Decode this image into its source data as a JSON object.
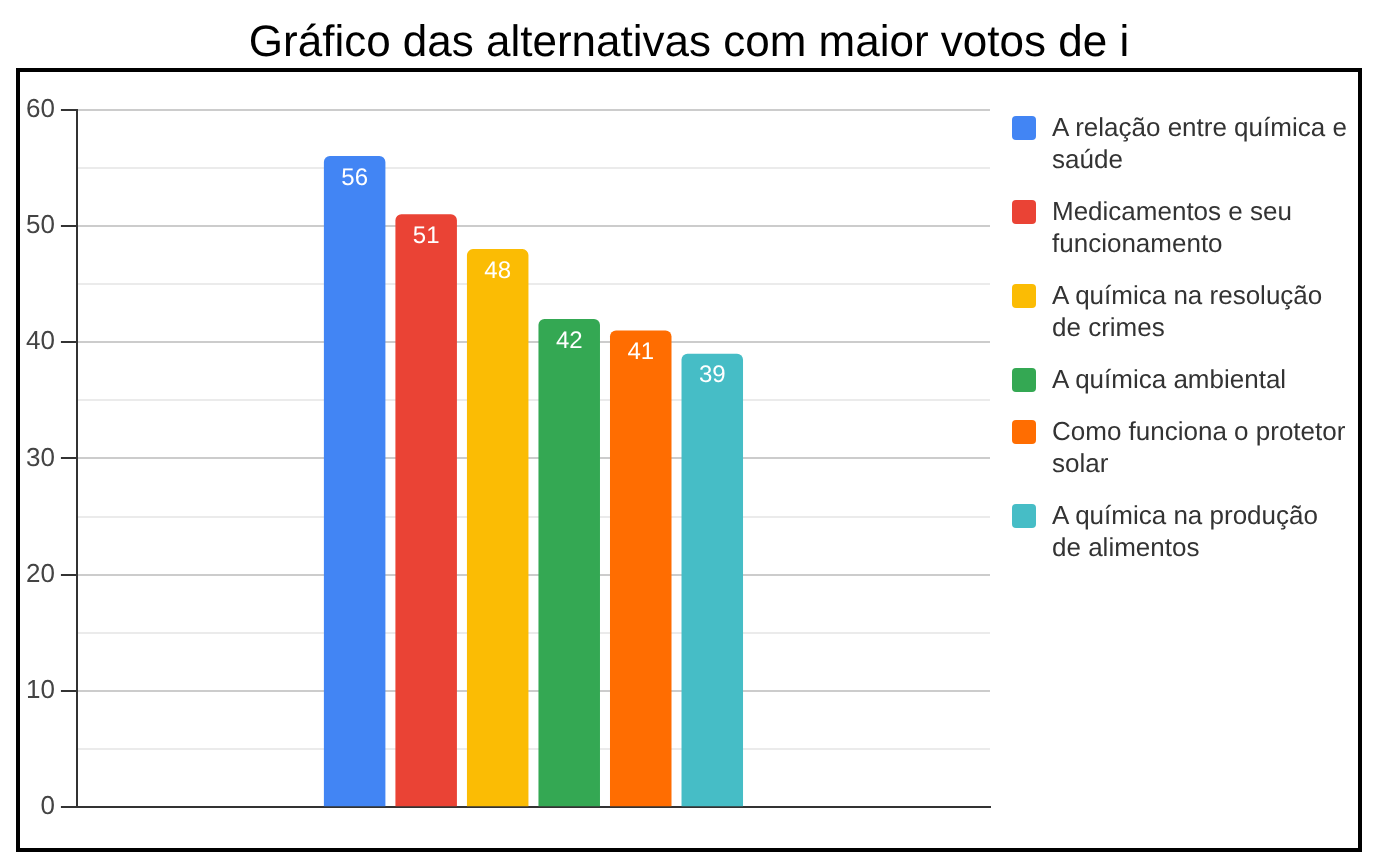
{
  "chart_data": {
    "type": "bar",
    "title": "Gráfico das alternativas com maior votos de i",
    "categories": [
      null
    ],
    "series": [
      {
        "name": "A relação entre química e saúde",
        "color": "#4285f4",
        "values": [
          56
        ]
      },
      {
        "name": "Medicamentos e seu funcionamento",
        "color": "#ea4335",
        "values": [
          51
        ]
      },
      {
        "name": "A química na resolução de crimes",
        "color": "#fbbc04",
        "values": [
          48
        ]
      },
      {
        "name": "A química ambiental",
        "color": "#34a853",
        "values": [
          42
        ]
      },
      {
        "name": "Como funciona o protetor solar",
        "color": "#ff6d01",
        "values": [
          41
        ]
      },
      {
        "name": "A química na produção de alimentos",
        "color": "#46bdc6",
        "values": [
          39
        ]
      }
    ],
    "ylim": [
      0,
      60
    ],
    "yticks": [
      0,
      {
        "value": 5,
        "label": null
      },
      10,
      {
        "value": 15,
        "label": null
      },
      20,
      {
        "value": 25,
        "label": null
      },
      30,
      {
        "value": 35,
        "label": null
      },
      40,
      {
        "value": 45,
        "label": null
      },
      50,
      {
        "value": 55,
        "label": null
      },
      60
    ],
    "grid": "y",
    "legend": "top right",
    "data_labels": true
  }
}
